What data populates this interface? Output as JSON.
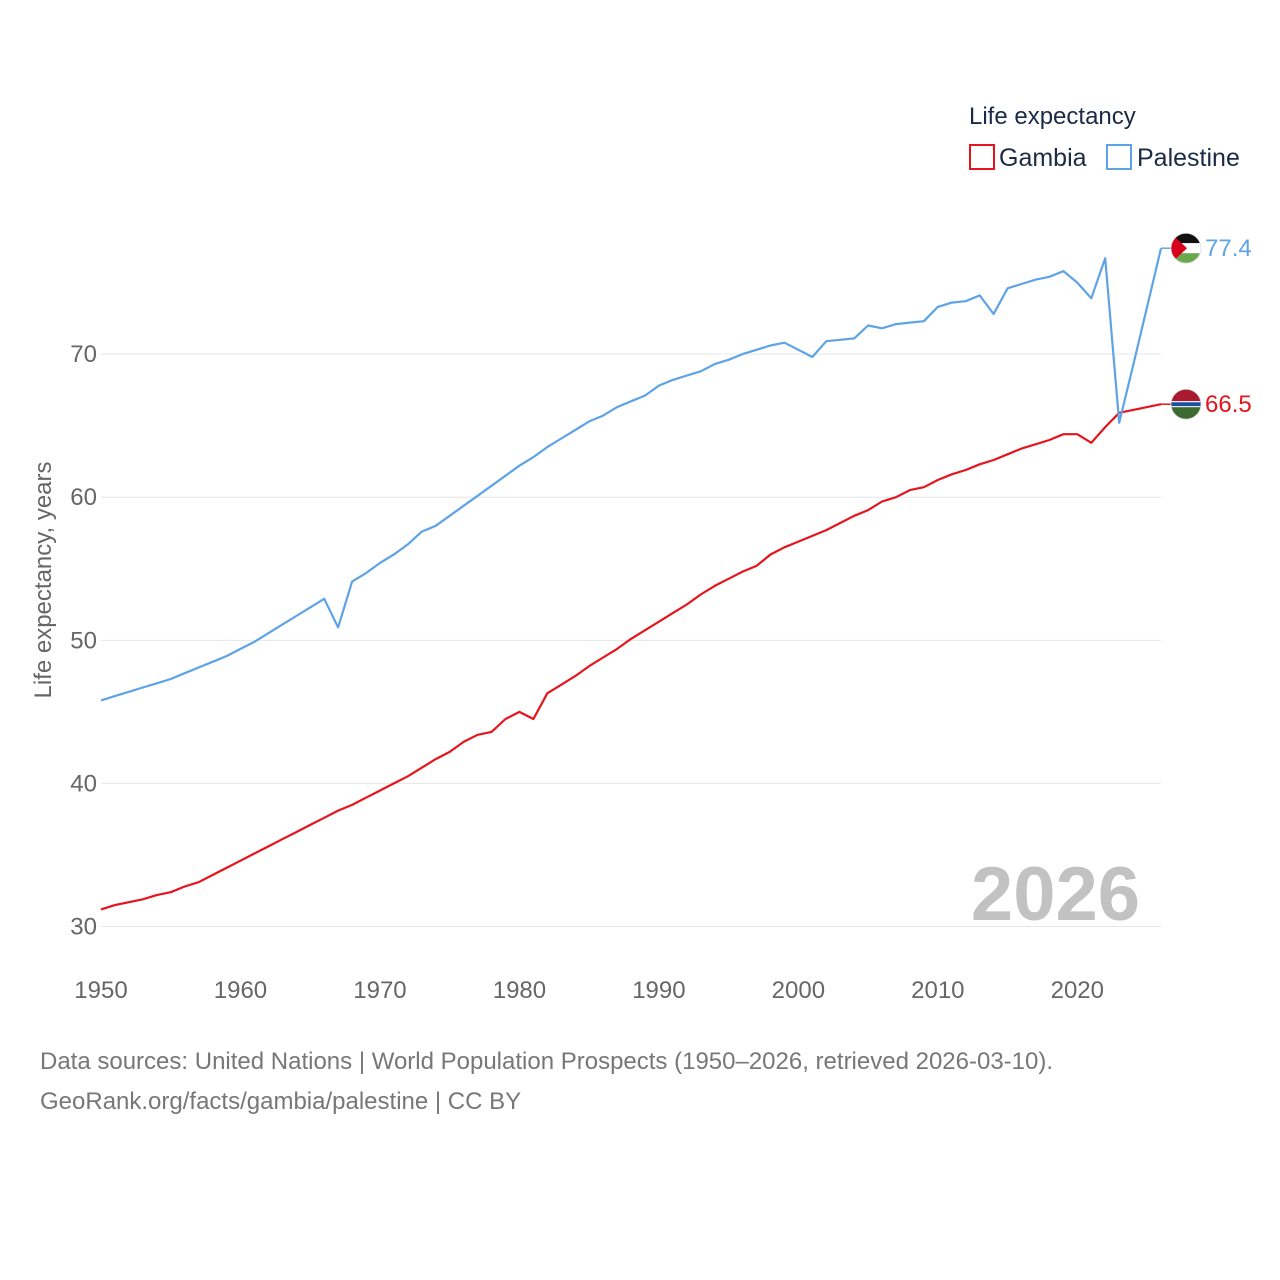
{
  "chart_data": {
    "type": "line",
    "xlabel": "",
    "ylabel": "Life expectancy, years",
    "xlim": [
      1950,
      2026
    ],
    "ylim": [
      28.5,
      80
    ],
    "xticks": [
      1950,
      1960,
      1970,
      1980,
      1990,
      2000,
      2010,
      2020
    ],
    "yticks": [
      30,
      40,
      50,
      60,
      70
    ],
    "legend_title": "Life expectancy",
    "legend_position": "top-right",
    "year_watermark": "2026",
    "series": [
      {
        "name": "Gambia",
        "color": "#e6141c",
        "end_label": "66.5",
        "x": [
          1950,
          1951,
          1952,
          1953,
          1954,
          1955,
          1956,
          1957,
          1958,
          1959,
          1960,
          1961,
          1962,
          1963,
          1964,
          1965,
          1966,
          1967,
          1968,
          1969,
          1970,
          1971,
          1972,
          1973,
          1974,
          1975,
          1976,
          1977,
          1978,
          1979,
          1980,
          1981,
          1982,
          1983,
          1984,
          1985,
          1986,
          1987,
          1988,
          1989,
          1990,
          1991,
          1992,
          1993,
          1994,
          1995,
          1996,
          1997,
          1998,
          1999,
          2000,
          2001,
          2002,
          2003,
          2004,
          2005,
          2006,
          2007,
          2008,
          2009,
          2010,
          2011,
          2012,
          2013,
          2014,
          2015,
          2016,
          2017,
          2018,
          2019,
          2020,
          2021,
          2022,
          2023,
          2024,
          2025,
          2026
        ],
        "y": [
          31.2,
          31.5,
          31.7,
          31.9,
          32.2,
          32.4,
          32.8,
          33.1,
          33.6,
          34.1,
          34.6,
          35.1,
          35.6,
          36.1,
          36.6,
          37.1,
          37.6,
          38.1,
          38.5,
          39.0,
          39.5,
          40.0,
          40.5,
          41.1,
          41.7,
          42.2,
          42.9,
          43.4,
          43.6,
          44.5,
          45.0,
          44.5,
          46.3,
          46.9,
          47.5,
          48.2,
          48.8,
          49.4,
          50.1,
          50.7,
          51.3,
          51.9,
          52.5,
          53.2,
          53.8,
          54.3,
          54.8,
          55.2,
          56.0,
          56.5,
          56.9,
          57.3,
          57.7,
          58.2,
          58.7,
          59.1,
          59.7,
          60.0,
          60.5,
          60.7,
          61.2,
          61.6,
          61.9,
          62.3,
          62.6,
          63.0,
          63.4,
          63.7,
          64.0,
          64.4,
          64.4,
          63.8,
          64.9,
          65.9,
          66.1,
          66.3,
          66.5
        ]
      },
      {
        "name": "Palestine",
        "color": "#5da3e6",
        "end_label": "77.4",
        "x": [
          1950,
          1951,
          1952,
          1953,
          1954,
          1955,
          1956,
          1957,
          1958,
          1959,
          1960,
          1961,
          1962,
          1963,
          1964,
          1965,
          1966,
          1967,
          1968,
          1969,
          1970,
          1971,
          1972,
          1973,
          1974,
          1975,
          1976,
          1977,
          1978,
          1979,
          1980,
          1981,
          1982,
          1983,
          1984,
          1985,
          1986,
          1987,
          1988,
          1989,
          1990,
          1991,
          1992,
          1993,
          1994,
          1995,
          1996,
          1997,
          1998,
          1999,
          2000,
          2001,
          2002,
          2003,
          2004,
          2005,
          2006,
          2007,
          2008,
          2009,
          2010,
          2011,
          2012,
          2013,
          2014,
          2015,
          2016,
          2017,
          2018,
          2019,
          2020,
          2021,
          2022,
          2023,
          2024,
          2025,
          2026
        ],
        "y": [
          45.8,
          46.1,
          46.4,
          46.7,
          47.0,
          47.3,
          47.7,
          48.1,
          48.5,
          48.9,
          49.4,
          49.9,
          50.5,
          51.1,
          51.7,
          52.3,
          52.9,
          50.9,
          54.1,
          54.7,
          55.4,
          56.0,
          56.7,
          57.6,
          58.0,
          58.7,
          59.4,
          60.1,
          60.8,
          61.5,
          62.2,
          62.8,
          63.5,
          64.1,
          64.7,
          65.3,
          65.7,
          66.3,
          66.7,
          67.1,
          67.8,
          68.2,
          68.5,
          68.8,
          69.3,
          69.6,
          70.0,
          70.3,
          70.6,
          70.8,
          70.3,
          69.8,
          70.9,
          71.0,
          71.1,
          72.0,
          71.8,
          72.1,
          72.2,
          72.3,
          73.3,
          73.6,
          73.7,
          74.1,
          72.8,
          74.6,
          74.9,
          75.2,
          75.4,
          75.8,
          75.0,
          73.9,
          76.7,
          65.2,
          69.2,
          73.3,
          77.4
        ]
      }
    ]
  },
  "footer": {
    "sources": "Data sources: United Nations | World Population Prospects (1950–2026, retrieved 2026-03-10).",
    "attribution": "GeoRank.org/facts/gambia/palestine | CC BY"
  }
}
